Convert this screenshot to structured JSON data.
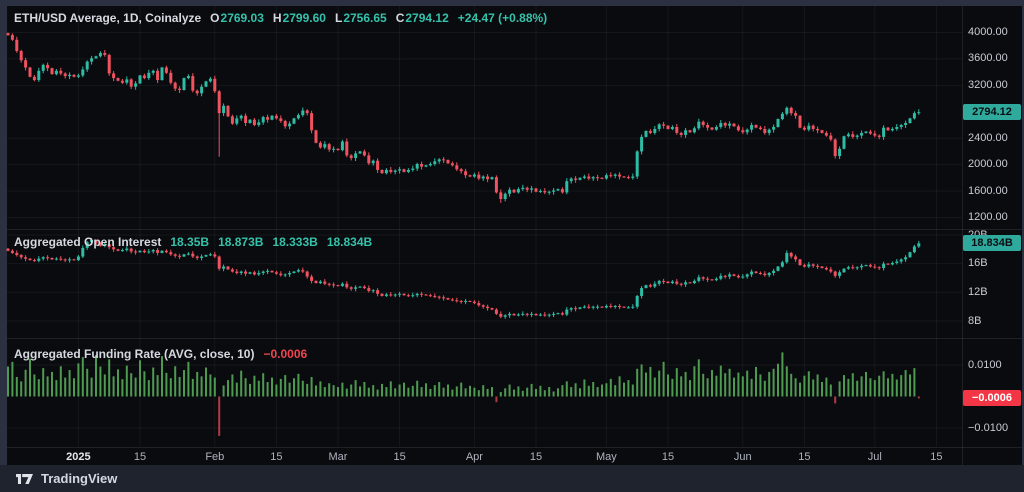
{
  "header": {
    "title": "ETH/USD Average, 1D, Coinalyze",
    "o_label": "O",
    "o": "2769.03",
    "h_label": "H",
    "h": "2799.60",
    "l_label": "L",
    "l": "2756.65",
    "c_label": "C",
    "c": "2794.12",
    "change": "+24.47 (+0.88%)"
  },
  "open_interest": {
    "title": "Aggregated Open Interest",
    "values": [
      "18.35B",
      "18.873B",
      "18.333B",
      "18.834B"
    ]
  },
  "funding": {
    "title": "Aggregated Funding Rate (AVG, close, 10)",
    "value": "−0.0006"
  },
  "footer": {
    "brand": "TradingView"
  },
  "colors": {
    "up": "#2ebca4",
    "down": "#f1525f",
    "fund_pos": "#4f9a51",
    "fund_neg": "#b03a44",
    "grid": "rgba(255,255,255,0.05)",
    "separator": "rgba(255,255,255,0.09)",
    "badge_teal": "#2fa99c",
    "badge_red": "#f23645"
  },
  "price_scale": {
    "labels": [
      {
        "text": "4000.00",
        "value": 4000
      },
      {
        "text": "3600.00",
        "value": 3600
      },
      {
        "text": "3200.00",
        "value": 3200
      },
      {
        "text": "2400.00",
        "value": 2400
      },
      {
        "text": "2000.00",
        "value": 2000
      },
      {
        "text": "1600.00",
        "value": 1600
      },
      {
        "text": "1200.00",
        "value": 1200
      }
    ],
    "badge": {
      "text": "2794.12",
      "value": 2794.12
    }
  },
  "oi_scale": {
    "labels": [
      {
        "text": "20B",
        "value": 20
      },
      {
        "text": "16B",
        "value": 16
      },
      {
        "text": "12B",
        "value": 12
      },
      {
        "text": "8B",
        "value": 8
      }
    ],
    "badge": {
      "text": "18.834B",
      "value": 18.834
    }
  },
  "funding_scale": {
    "labels": [
      {
        "text": "0.0100",
        "value": 100
      },
      {
        "text": "−0.0100",
        "value": -100
      }
    ],
    "badge": {
      "text": "−0.0006",
      "value": -6
    }
  },
  "time_axis": {
    "ticks": [
      {
        "label": "2025",
        "day": 16,
        "major": true
      },
      {
        "label": "15",
        "day": 30
      },
      {
        "label": "Feb",
        "day": 47
      },
      {
        "label": "15",
        "day": 61
      },
      {
        "label": "Mar",
        "day": 75
      },
      {
        "label": "15",
        "day": 89
      },
      {
        "label": "Apr",
        "day": 106
      },
      {
        "label": "15",
        "day": 120
      },
      {
        "label": "May",
        "day": 136
      },
      {
        "label": "15",
        "day": 150
      },
      {
        "label": "Jun",
        "day": 167
      },
      {
        "label": "15",
        "day": 181
      },
      {
        "label": "Jul",
        "day": 197
      },
      {
        "label": "15",
        "day": 211
      }
    ]
  },
  "chart_data": [
    {
      "type": "candlestick",
      "name": "ETH/USD Average, 1D, Coinalyze",
      "ohlc_current": {
        "open": 2769.03,
        "high": 2799.6,
        "low": 2756.65,
        "close": 2794.12,
        "change": 24.47,
        "change_pct": 0.88
      },
      "ylim": [
        1135,
        4110
      ],
      "y_ticks": [
        1200,
        1600,
        2000,
        2400,
        3200,
        3600,
        4000
      ],
      "first_open": 3990,
      "closes": [
        3960,
        3890,
        3720,
        3580,
        3470,
        3330,
        3280,
        3420,
        3510,
        3460,
        3370,
        3420,
        3380,
        3340,
        3360,
        3330,
        3350,
        3440,
        3560,
        3610,
        3640,
        3690,
        3660,
        3380,
        3310,
        3270,
        3240,
        3290,
        3180,
        3230,
        3350,
        3310,
        3390,
        3420,
        3280,
        3470,
        3390,
        3240,
        3150,
        3130,
        3310,
        3340,
        3120,
        3080,
        3180,
        3260,
        3300,
        3110,
        2780,
        2890,
        2730,
        2620,
        2700,
        2740,
        2630,
        2680,
        2600,
        2640,
        2720,
        2680,
        2740,
        2700,
        2660,
        2580,
        2620,
        2700,
        2750,
        2820,
        2780,
        2520,
        2330,
        2260,
        2310,
        2230,
        2240,
        2220,
        2350,
        2140,
        2100,
        2170,
        2200,
        2140,
        2020,
        2060,
        1920,
        1870,
        1920,
        1890,
        1910,
        1930,
        1890,
        1920,
        1940,
        2010,
        1970,
        1990,
        2010,
        2050,
        2080,
        2070,
        2020,
        1990,
        1930,
        1900,
        1840,
        1820,
        1850,
        1790,
        1820,
        1780,
        1810,
        1580,
        1480,
        1560,
        1620,
        1580,
        1630,
        1650,
        1620,
        1640,
        1590,
        1600,
        1580,
        1590,
        1610,
        1630,
        1580,
        1750,
        1790,
        1770,
        1800,
        1820,
        1790,
        1810,
        1800,
        1790,
        1840,
        1830,
        1850,
        1820,
        1810,
        1800,
        1820,
        2200,
        2420,
        2510,
        2480,
        2540,
        2610,
        2590,
        2540,
        2570,
        2480,
        2450,
        2520,
        2490,
        2550,
        2650,
        2600,
        2560,
        2530,
        2570,
        2630,
        2590,
        2620,
        2580,
        2520,
        2490,
        2530,
        2600,
        2560,
        2540,
        2480,
        2530,
        2570,
        2690,
        2770,
        2860,
        2780,
        2740,
        2560,
        2530,
        2590,
        2540,
        2520,
        2480,
        2440,
        2380,
        2130,
        2240,
        2430,
        2460,
        2420,
        2440,
        2480,
        2500,
        2470,
        2440,
        2420,
        2560,
        2520,
        2540,
        2570,
        2600,
        2630,
        2700,
        2780,
        2794.12
      ],
      "wick_overrides": {
        "48": {
          "low": 2120
        },
        "112": {
          "low": 1420
        },
        "177": {
          "high": 2880
        }
      }
    },
    {
      "type": "candlestick",
      "name": "Aggregated Open Interest",
      "unit": "B",
      "display_values": [
        18.35,
        18.873,
        18.333,
        18.834
      ],
      "ylim": [
        7.5,
        20.5
      ],
      "y_ticks": [
        8,
        12,
        16,
        20
      ],
      "first_open": 18.1,
      "closes": [
        17.8,
        17.5,
        17.2,
        16.9,
        16.7,
        16.5,
        16.4,
        16.7,
        16.9,
        16.8,
        16.6,
        16.7,
        16.6,
        16.5,
        16.6,
        16.5,
        17.0,
        18.2,
        19.0,
        19.3,
        18.8,
        18.5,
        18.7,
        18.3,
        18.0,
        17.8,
        17.9,
        18.1,
        17.7,
        17.6,
        17.8,
        17.6,
        17.7,
        17.9,
        17.5,
        17.8,
        17.6,
        17.3,
        17.1,
        17.0,
        17.3,
        17.4,
        17.0,
        16.8,
        17.0,
        17.2,
        17.3,
        17.0,
        15.3,
        15.6,
        15.2,
        14.9,
        14.7,
        14.9,
        14.6,
        14.8,
        14.5,
        14.7,
        14.9,
        15.0,
        14.8,
        14.6,
        14.4,
        14.5,
        14.7,
        14.9,
        15.1,
        14.9,
        14.2,
        13.6,
        13.3,
        13.5,
        13.2,
        13.1,
        13.0,
        12.9,
        13.2,
        12.7,
        12.5,
        12.7,
        12.8,
        12.6,
        12.2,
        12.3,
        11.8,
        11.5,
        11.7,
        11.6,
        11.7,
        11.8,
        11.6,
        11.5,
        11.6,
        11.8,
        11.7,
        11.6,
        11.5,
        11.4,
        11.3,
        11.2,
        11.0,
        10.9,
        10.8,
        10.7,
        10.8,
        10.7,
        10.5,
        10.2,
        10.0,
        9.8,
        9.6,
        9.0,
        8.6,
        8.8,
        9.0,
        8.8,
        8.9,
        9.0,
        8.9,
        9.0,
        8.8,
        8.9,
        8.8,
        8.9,
        9.0,
        9.1,
        8.9,
        9.6,
        9.8,
        9.7,
        9.9,
        10.0,
        9.9,
        10.0,
        10.0,
        9.9,
        10.1,
        10.0,
        10.1,
        10.0,
        9.9,
        9.9,
        10.0,
        11.5,
        12.6,
        13.0,
        12.8,
        13.2,
        13.6,
        13.5,
        13.3,
        13.5,
        13.2,
        13.1,
        13.4,
        13.3,
        13.6,
        14.1,
        13.9,
        13.8,
        13.7,
        13.9,
        14.3,
        14.2,
        14.5,
        14.3,
        14.1,
        14.2,
        14.5,
        14.9,
        14.7,
        14.6,
        14.4,
        14.7,
        15.0,
        15.6,
        16.2,
        17.5,
        17.0,
        16.6,
        15.8,
        15.6,
        15.9,
        15.7,
        15.6,
        15.4,
        15.2,
        14.9,
        14.3,
        14.8,
        15.3,
        15.5,
        15.4,
        15.5,
        15.7,
        15.8,
        15.6,
        15.5,
        15.4,
        16.0,
        15.9,
        16.1,
        16.3,
        16.6,
        16.9,
        17.6,
        18.4,
        18.834
      ],
      "wick_overrides": {}
    },
    {
      "type": "histogram",
      "name": "Aggregated Funding Rate (AVG, close, 10)",
      "value_scale": 0.0001,
      "ylim": [
        -0.016,
        0.016
      ],
      "y_ticks": [
        0.01,
        -0.01
      ],
      "values_1e4": [
        95,
        110,
        62,
        48,
        85,
        120,
        70,
        55,
        90,
        64,
        78,
        52,
        96,
        60,
        84,
        58,
        105,
        125,
        88,
        60,
        132,
        95,
        70,
        118,
        64,
        86,
        55,
        98,
        74,
        60,
        115,
        80,
        52,
        92,
        68,
        128,
        75,
        58,
        96,
        62,
        84,
        110,
        56,
        78,
        64,
        92,
        70,
        60,
        -125,
        35,
        52,
        70,
        44,
        82,
        58,
        40,
        66,
        50,
        74,
        46,
        60,
        38,
        56,
        68,
        44,
        58,
        72,
        50,
        40,
        62,
        35,
        48,
        30,
        42,
        36,
        30,
        44,
        25,
        38,
        52,
        32,
        46,
        28,
        36,
        22,
        40,
        30,
        48,
        26,
        38,
        44,
        28,
        34,
        50,
        30,
        42,
        24,
        36,
        46,
        28,
        38,
        22,
        32,
        44,
        26,
        34,
        28,
        20,
        36,
        24,
        30,
        -18,
        14,
        26,
        38,
        22,
        32,
        18,
        28,
        40,
        24,
        34,
        20,
        30,
        16,
        26,
        36,
        48,
        30,
        42,
        26,
        54,
        34,
        46,
        30,
        38,
        42,
        56,
        36,
        64,
        44,
        52,
        38,
        88,
        102,
        76,
        94,
        60,
        82,
        110,
        70,
        56,
        90,
        64,
        78,
        52,
        96,
        118,
        72,
        58,
        84,
        66,
        98,
        74,
        88,
        60,
        76,
        64,
        82,
        56,
        94,
        70,
        50,
        78,
        88,
        104,
        140,
        96,
        72,
        58,
        44,
        66,
        80,
        54,
        70,
        46,
        60,
        38,
        -22,
        48,
        68,
        56,
        74,
        50,
        64,
        78,
        58,
        52,
        66,
        80,
        58,
        72,
        54,
        68,
        84,
        70,
        90,
        -6
      ]
    }
  ]
}
